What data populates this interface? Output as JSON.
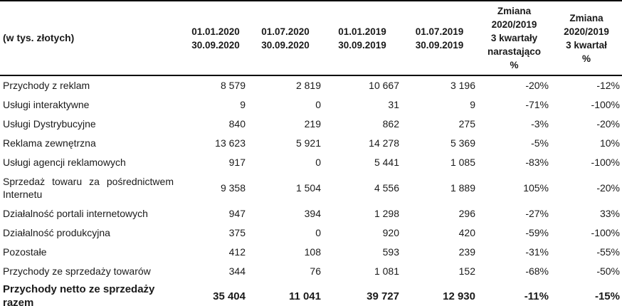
{
  "table": {
    "unit_label": "(w tys. złotych)",
    "headers": [
      "01.01.2020\n30.09.2020",
      "01.07.2020\n30.09.2020",
      "01.01.2019\n30.09.2019",
      "01.07.2019\n30.09.2019",
      "Zmiana\n2020/2019\n3 kwartały\nnarastająco\n%",
      "Zmiana\n2020/2019\n3 kwartał\n%"
    ],
    "rows": [
      {
        "label": "Przychody z reklam",
        "values": [
          "8 579",
          "2 819",
          "10 667",
          "3 196",
          "-20%",
          "-12%"
        ],
        "is_total": false
      },
      {
        "label": "Usługi interaktywne",
        "values": [
          "9",
          "0",
          "31",
          "9",
          "-71%",
          "-100%"
        ],
        "is_total": false
      },
      {
        "label": "Usługi Dystrybucyjne",
        "values": [
          "840",
          "219",
          "862",
          "275",
          "-3%",
          "-20%"
        ],
        "is_total": false
      },
      {
        "label": "Reklama zewnętrzna",
        "values": [
          "13 623",
          "5 921",
          "14 278",
          "5 369",
          "-5%",
          "10%"
        ],
        "is_total": false
      },
      {
        "label": "Usługi agencji reklamowych",
        "values": [
          "917",
          "0",
          "5 441",
          "1 085",
          "-83%",
          "-100%"
        ],
        "is_total": false
      },
      {
        "label": "Sprzedaż towaru za pośrednictwem Internetu",
        "values": [
          "9 358",
          "1 504",
          "4 556",
          "1 889",
          "105%",
          "-20%"
        ],
        "is_total": false
      },
      {
        "label": "Działalność portali internetowych",
        "values": [
          "947",
          "394",
          "1 298",
          "296",
          "-27%",
          "33%"
        ],
        "is_total": false
      },
      {
        "label": "Działalność produkcyjna",
        "values": [
          "375",
          "0",
          "920",
          "420",
          "-59%",
          "-100%"
        ],
        "is_total": false
      },
      {
        "label": "Pozostałe",
        "values": [
          "412",
          "108",
          "593",
          "239",
          "-31%",
          "-55%"
        ],
        "is_total": false
      },
      {
        "label": "Przychody ze sprzedaży towarów",
        "values": [
          "344",
          "76",
          "1 081",
          "152",
          "-68%",
          "-50%"
        ],
        "is_total": false
      },
      {
        "label": "Przychody netto ze sprzedaży razem",
        "values": [
          "35 404",
          "11 041",
          "39 727",
          "12 930",
          "-11%",
          "-15%"
        ],
        "is_total": true
      }
    ]
  }
}
